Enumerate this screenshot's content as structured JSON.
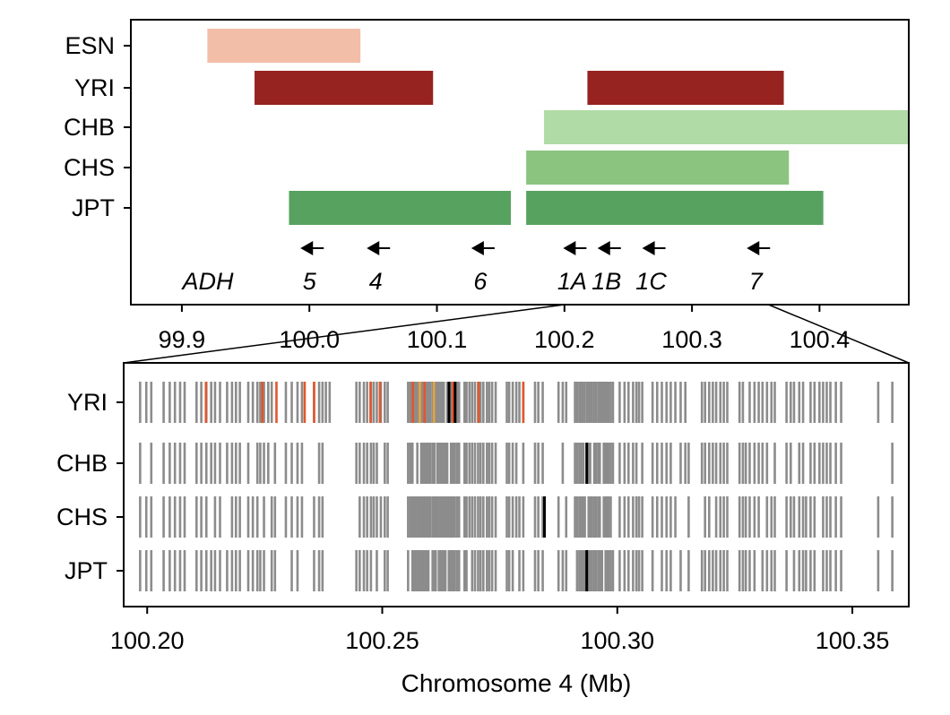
{
  "chart_data": [
    {
      "type": "bar",
      "subtype": "horizontal-interval",
      "xlim": [
        99.86,
        100.47
      ],
      "xticks": [
        "99.9",
        "100.0",
        "100.1",
        "100.2",
        "100.3",
        "100.4"
      ],
      "categories": [
        "ESN",
        "YRI",
        "CHB",
        "CHS",
        "JPT"
      ],
      "intervals": [
        {
          "pop": "ESN",
          "start": 99.92,
          "end": 100.04,
          "color": "#f2bea7"
        },
        {
          "pop": "YRI",
          "start": 99.957,
          "end": 100.097,
          "color": "#962320"
        },
        {
          "pop": "YRI",
          "start": 100.218,
          "end": 100.372,
          "color": "#962320"
        },
        {
          "pop": "CHB",
          "start": 100.184,
          "end": 100.47,
          "color": "#b1dba6"
        },
        {
          "pop": "CHS",
          "start": 100.17,
          "end": 100.376,
          "color": "#8ac47f"
        },
        {
          "pop": "JPT",
          "start": 99.984,
          "end": 100.158,
          "color": "#58a25f"
        },
        {
          "pop": "JPT",
          "start": 100.17,
          "end": 100.403,
          "color": "#58a25f"
        }
      ],
      "genes": {
        "family_label": "ADH",
        "items": [
          {
            "label": "5",
            "arrow": 100.0
          },
          {
            "label": "4",
            "arrow": 100.052
          },
          {
            "label": "6",
            "arrow": 100.134
          },
          {
            "label": "1A",
            "arrow": 100.206
          },
          {
            "label": "1B",
            "arrow": 100.233
          },
          {
            "label": "1C",
            "arrow": 100.268
          },
          {
            "label": "7",
            "arrow": 100.35
          }
        ]
      },
      "zoom_range": [
        100.2,
        100.36
      ]
    },
    {
      "type": "scatter",
      "subtype": "variant-ticks",
      "xlim": [
        100.195,
        100.362
      ],
      "xticks": [
        "100.20",
        "100.25",
        "100.30",
        "100.35"
      ],
      "xlabel": "Chromosome 4 (Mb)",
      "categories": [
        "YRI",
        "CHB",
        "CHS",
        "JPT"
      ],
      "colors": {
        "default": "#8c8c8c",
        "highlight": "#e2562a",
        "alt": "#e8a33a",
        "lead": "#000000"
      }
    }
  ]
}
